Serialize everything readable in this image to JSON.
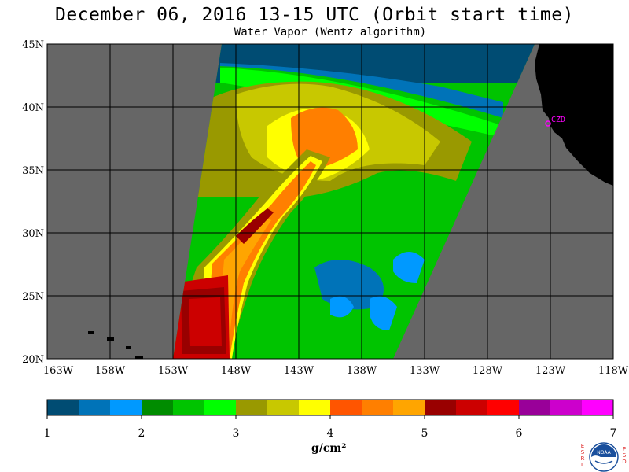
{
  "title": "December 06, 2016  13-15 UTC  (Orbit start time)",
  "subtitle": "Water Vapor (Wentz algorithm)",
  "axes": {
    "lat_labels": [
      "45N",
      "40N",
      "35N",
      "30N",
      "25N",
      "20N"
    ],
    "lon_labels": [
      "163W",
      "158W",
      "153W",
      "148W",
      "143W",
      "138W",
      "133W",
      "128W",
      "123W",
      "118W"
    ]
  },
  "station_label": "CZD",
  "colorbar": {
    "ticks": [
      "1",
      "2",
      "3",
      "4",
      "5",
      "6",
      "7"
    ],
    "unit": "g/cm²",
    "colors": [
      "#004c73",
      "#0073b8",
      "#0099ff",
      "#008c00",
      "#00c400",
      "#00ff00",
      "#999900",
      "#c8c800",
      "#ffff00",
      "#ff5500",
      "#ff7f00",
      "#ffa500",
      "#990000",
      "#cc0000",
      "#ff0000",
      "#990099",
      "#cc00cc",
      "#ff00ff"
    ]
  },
  "logo": {
    "left_letters": [
      "E",
      "S",
      "R",
      "L"
    ],
    "right_letters": [
      "P",
      "S",
      "D"
    ],
    "badge_text": "NOAA"
  },
  "colors": {
    "no_data": "#666666",
    "land": "#000000",
    "grid": "#000000",
    "station": "#ff00ff"
  }
}
